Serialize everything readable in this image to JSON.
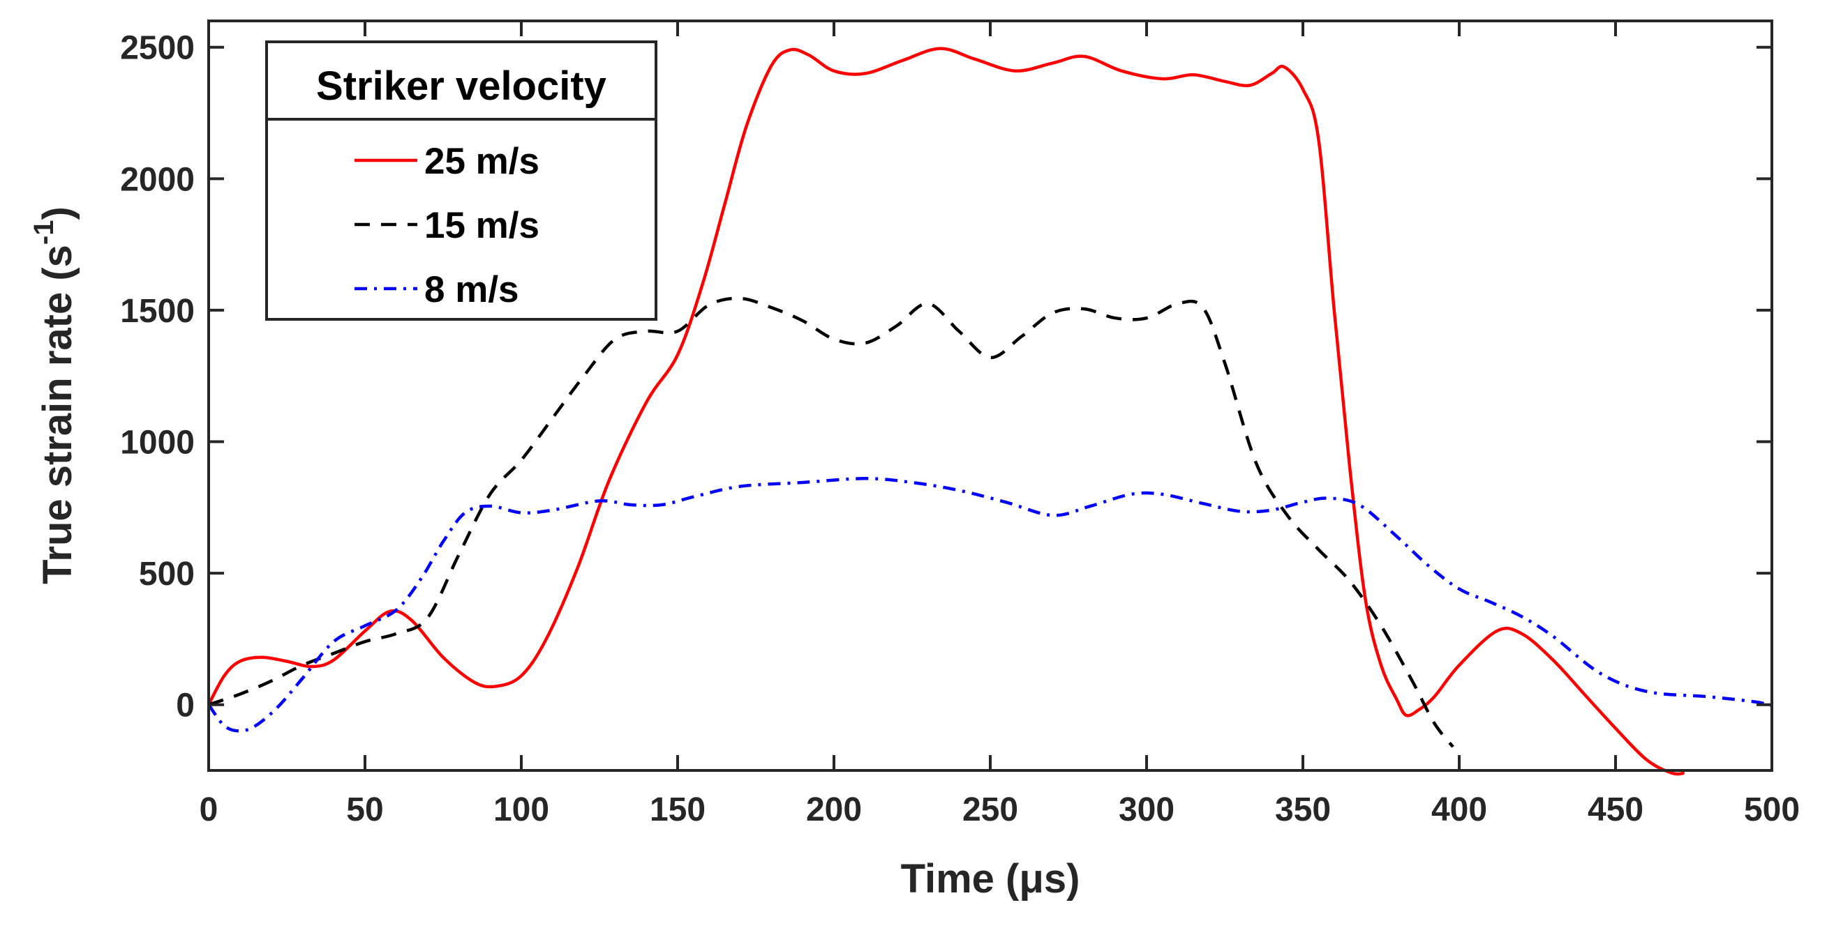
{
  "chart_data": {
    "type": "line",
    "title": "",
    "xlabel": "Time (μs)",
    "ylabel_main": "True strain rate (s",
    "ylabel_sup": "-1",
    "ylabel_close": ")",
    "xlim": [
      0,
      500
    ],
    "ylim": [
      -250,
      2600
    ],
    "xticks": [
      0,
      50,
      100,
      150,
      200,
      250,
      300,
      350,
      400,
      450,
      500
    ],
    "yticks": [
      0,
      500,
      1000,
      1500,
      2000,
      2500
    ],
    "grid": false,
    "legend": {
      "title": "Striker velocity",
      "position": "top-left"
    },
    "series": [
      {
        "name": "25 m/s",
        "color": "#ff0000",
        "style": "solid",
        "x": [
          0,
          5,
          10,
          17,
          25,
          33,
          40,
          50,
          58,
          65,
          75,
          85,
          92,
          100,
          108,
          118,
          128,
          140,
          150,
          158,
          165,
          172,
          180,
          186,
          192,
          200,
          210,
          222,
          234,
          245,
          258,
          270,
          280,
          292,
          305,
          315,
          325,
          333,
          340,
          344,
          350,
          355,
          360,
          365,
          370,
          375,
          380,
          383,
          387,
          392,
          400,
          412,
          420,
          430,
          440,
          450,
          460,
          468,
          472
        ],
        "y": [
          0,
          110,
          165,
          180,
          165,
          145,
          170,
          280,
          355,
          320,
          180,
          85,
          70,
          110,
          250,
          520,
          850,
          1150,
          1330,
          1600,
          1900,
          2200,
          2430,
          2490,
          2470,
          2410,
          2400,
          2450,
          2495,
          2455,
          2410,
          2440,
          2465,
          2410,
          2380,
          2395,
          2370,
          2355,
          2400,
          2425,
          2340,
          2150,
          1500,
          900,
          400,
          150,
          20,
          -40,
          -20,
          30,
          150,
          280,
          270,
          170,
          40,
          -90,
          -210,
          -260,
          -260
        ]
      },
      {
        "name": "15 m/s",
        "color": "#000000",
        "style": "dashed",
        "x": [
          0,
          10,
          20,
          30,
          40,
          50,
          60,
          70,
          80,
          90,
          100,
          110,
          120,
          130,
          140,
          150,
          160,
          170,
          180,
          190,
          200,
          210,
          220,
          230,
          240,
          250,
          260,
          270,
          280,
          290,
          300,
          310,
          318,
          325,
          335,
          345,
          355,
          365,
          375,
          385,
          392,
          398
        ],
        "y": [
          0,
          40,
          90,
          150,
          195,
          240,
          270,
          330,
          570,
          800,
          930,
          1090,
          1250,
          1390,
          1420,
          1420,
          1520,
          1545,
          1510,
          1460,
          1390,
          1375,
          1440,
          1525,
          1420,
          1320,
          1400,
          1490,
          1505,
          1470,
          1470,
          1525,
          1510,
          1300,
          920,
          720,
          590,
          470,
          300,
          90,
          -70,
          -160
        ]
      },
      {
        "name": "8 m/s",
        "color": "#0000ff",
        "style": "dashdot",
        "x": [
          0,
          5,
          10,
          15,
          22,
          30,
          40,
          50,
          60,
          68,
          75,
          82,
          90,
          100,
          110,
          125,
          135,
          145,
          155,
          170,
          190,
          210,
          225,
          240,
          255,
          270,
          282,
          295,
          305,
          318,
          330,
          340,
          350,
          358,
          368,
          380,
          390,
          400,
          410,
          420,
          430,
          445,
          460,
          480,
          495,
          500
        ],
        "y": [
          0,
          -80,
          -100,
          -80,
          -10,
          100,
          240,
          300,
          360,
          480,
          620,
          730,
          755,
          730,
          740,
          775,
          760,
          760,
          790,
          830,
          845,
          860,
          845,
          815,
          770,
          720,
          755,
          800,
          800,
          765,
          735,
          740,
          770,
          785,
          760,
          640,
          530,
          440,
          390,
          335,
          260,
          120,
          50,
          30,
          10,
          -5
        ]
      }
    ]
  }
}
